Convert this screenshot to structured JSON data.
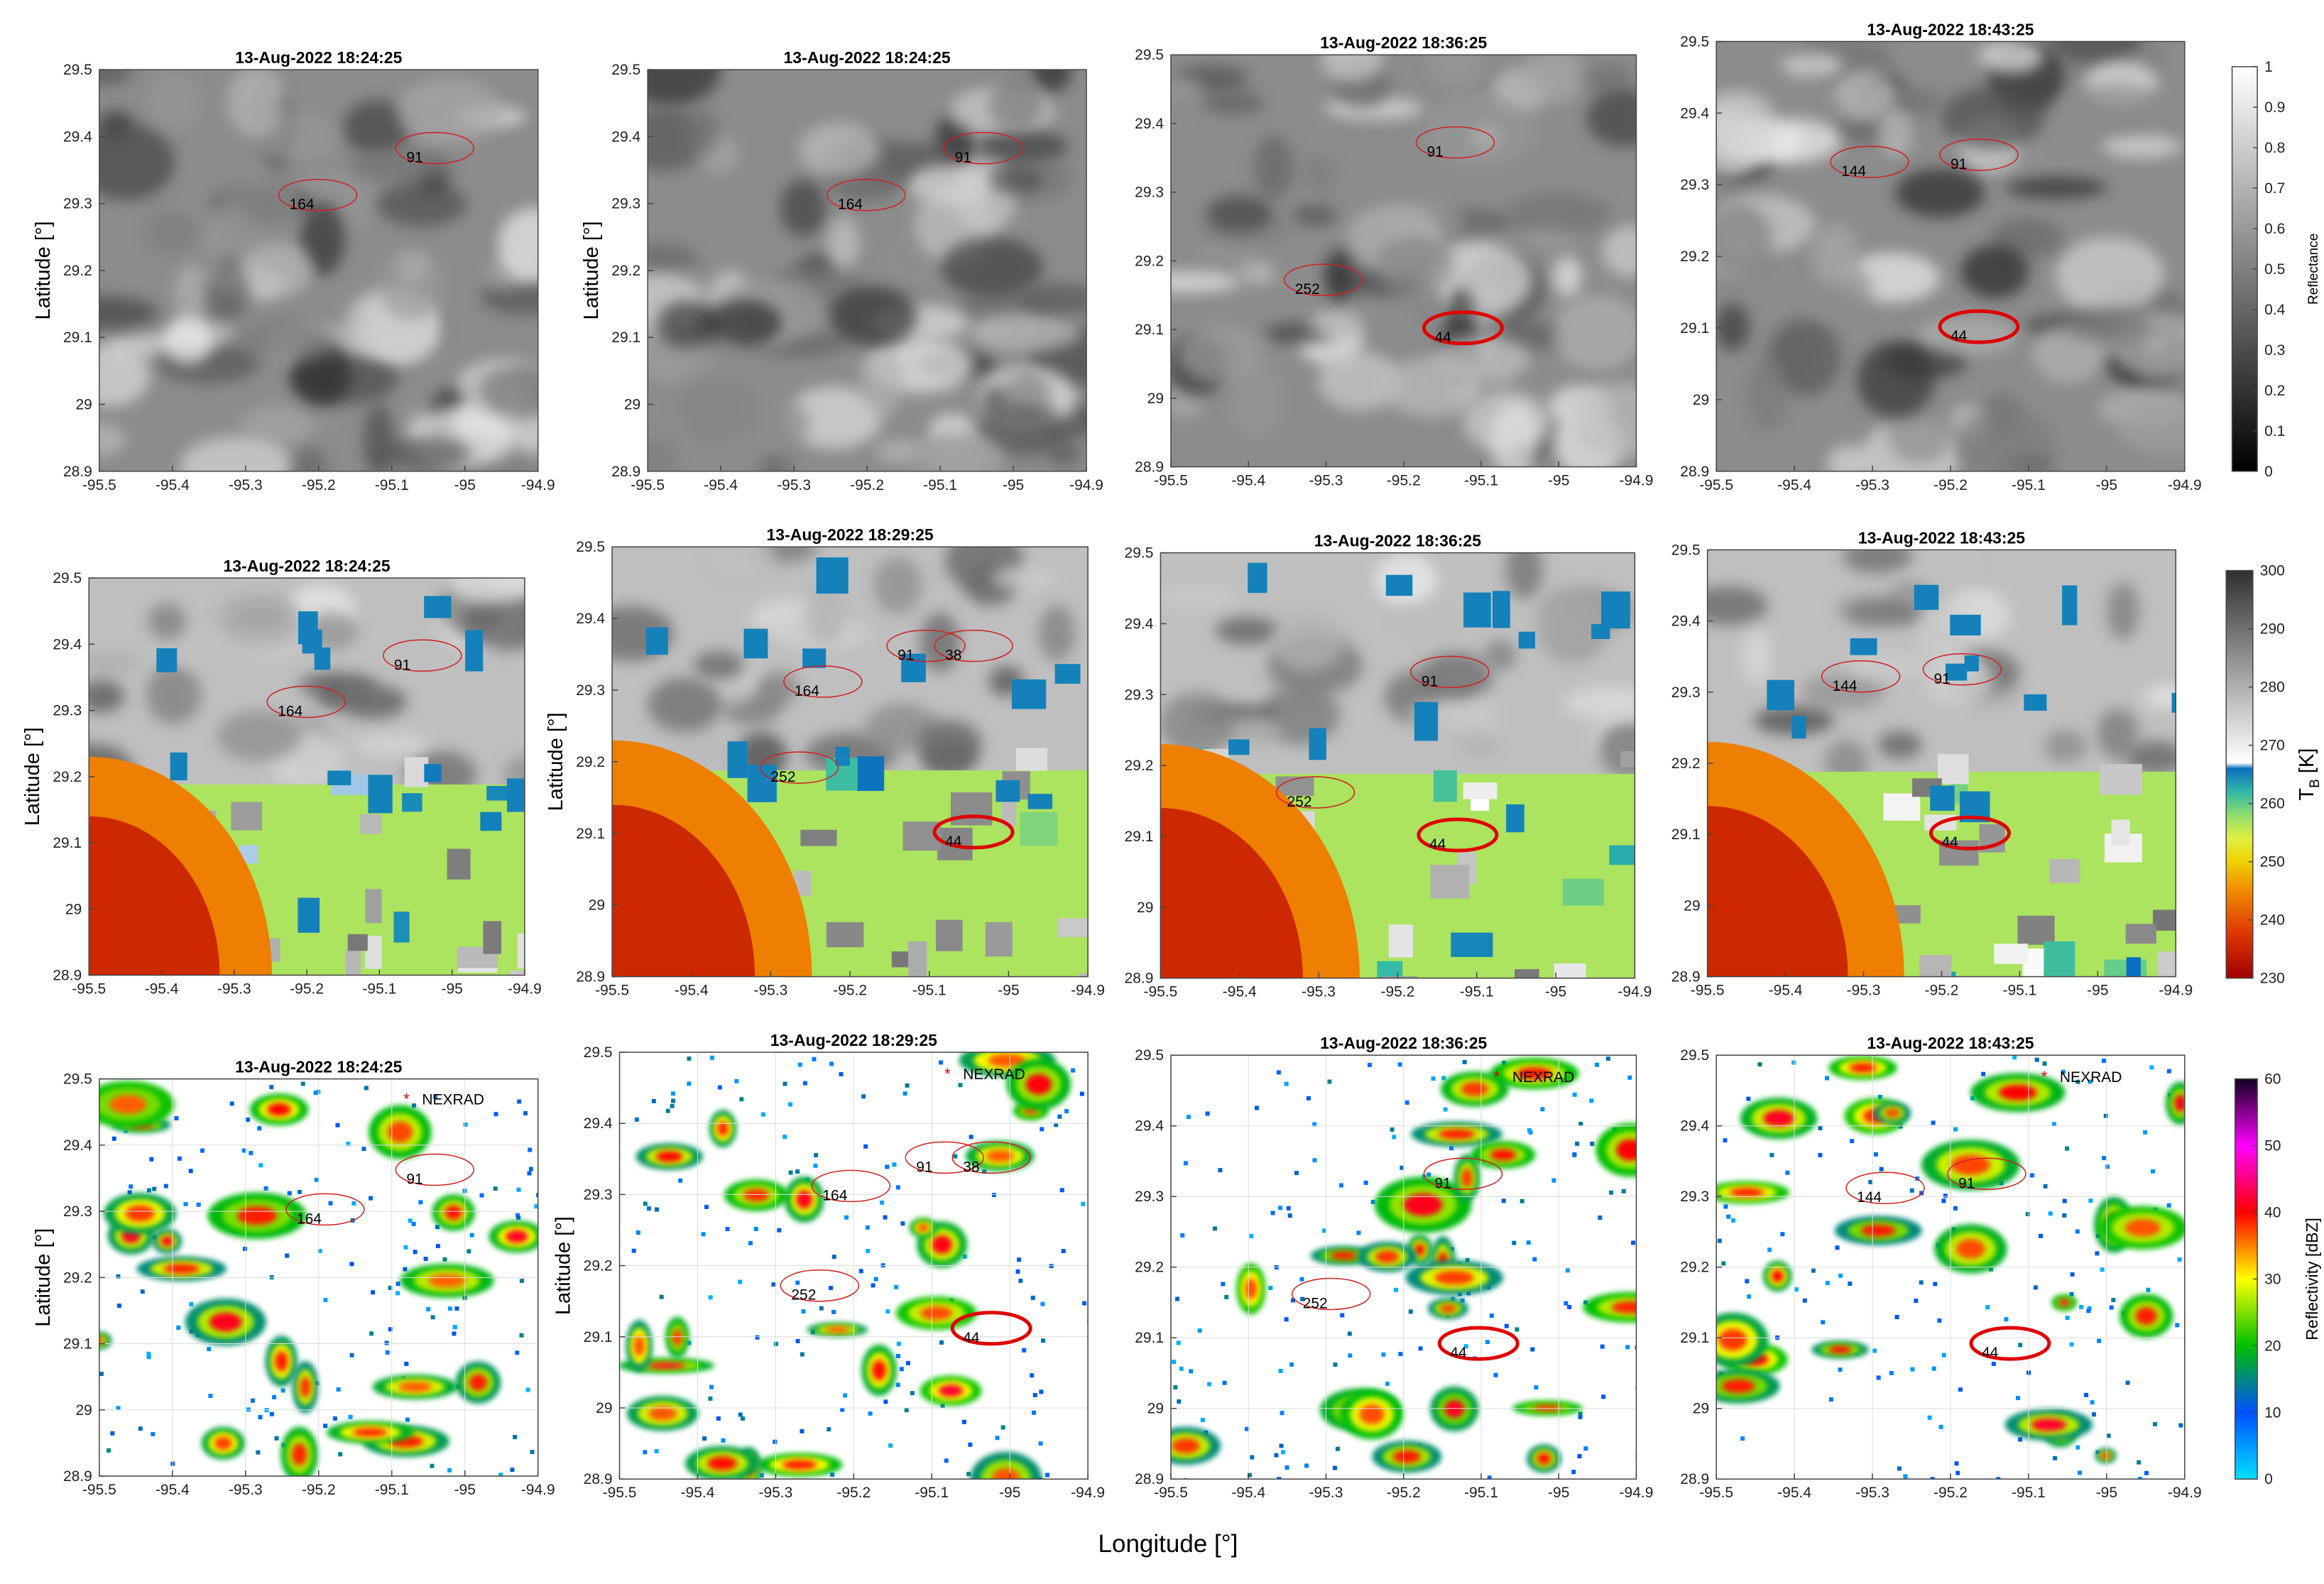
{
  "figure": {
    "xlabel": "Longitude [°]",
    "ylabel": "Latitude [°]",
    "xlim": [
      -95.5,
      -94.9
    ],
    "ylim": [
      28.9,
      29.5
    ],
    "xticks": [
      -95.5,
      -95.4,
      -95.3,
      -95.2,
      -95.1,
      -95,
      -94.9
    ],
    "yticks": [
      28.9,
      29,
      29.1,
      29.2,
      29.3,
      29.4,
      29.5
    ],
    "rows": [
      {
        "colorbar": {
          "label": "Reflectance",
          "lim": [
            0,
            1
          ],
          "ticks": [
            0,
            0.1,
            0.2,
            0.3,
            0.4,
            0.5,
            0.6,
            0.7,
            0.8,
            0.9,
            1
          ],
          "colormap": [
            [
              0,
              "#000000"
            ],
            [
              1,
              "#ffffff"
            ]
          ]
        },
        "grid": false,
        "panels": [
          {
            "title": "13-Aug-2022 18:24:25",
            "cells": [
              {
                "id": "91",
                "lon": -95.08,
                "lat": 29.37
              },
              {
                "id": "164",
                "lon": -95.24,
                "lat": 29.3
              }
            ]
          },
          {
            "title": "13-Aug-2022 18:24:25",
            "cells": [
              {
                "id": "91",
                "lon": -95.08,
                "lat": 29.37
              },
              {
                "id": "164",
                "lon": -95.24,
                "lat": 29.3
              }
            ]
          },
          {
            "title": "13-Aug-2022 18:36:25",
            "cells": [
              {
                "id": "91",
                "lon": -95.17,
                "lat": 29.36
              },
              {
                "id": "252",
                "lon": -95.34,
                "lat": 29.16
              },
              {
                "id": "44",
                "lon": -95.16,
                "lat": 29.09,
                "highlight": true
              }
            ]
          },
          {
            "title": "13-Aug-2022 18:43:25",
            "cells": [
              {
                "id": "144",
                "lon": -95.34,
                "lat": 29.32
              },
              {
                "id": "91",
                "lon": -95.2,
                "lat": 29.33
              },
              {
                "id": "44",
                "lon": -95.2,
                "lat": 29.09,
                "highlight": true
              }
            ]
          }
        ]
      },
      {
        "colorbar": {
          "label": {
            "main": "T",
            "sub": "B",
            "unit": "[K]"
          },
          "lim": [
            230,
            300
          ],
          "ticks": [
            230,
            240,
            250,
            260,
            270,
            280,
            290,
            300
          ],
          "colormap": [
            [
              230,
              "#a00000"
            ],
            [
              238,
              "#e03a00"
            ],
            [
              245,
              "#f08a00"
            ],
            [
              250,
              "#f0d000"
            ],
            [
              254,
              "#e0f040"
            ],
            [
              258,
              "#90dc70"
            ],
            [
              262,
              "#30b8a8"
            ],
            [
              266,
              "#0a6ec0"
            ],
            [
              267,
              "#ffffff"
            ],
            [
              280,
              "#b0b0b0"
            ],
            [
              300,
              "#303030"
            ]
          ]
        },
        "grid": false,
        "panels": [
          {
            "title": "13-Aug-2022 18:24:25",
            "cells": [
              {
                "id": "91",
                "lon": -95.08,
                "lat": 29.37
              },
              {
                "id": "164",
                "lon": -95.24,
                "lat": 29.3
              }
            ]
          },
          {
            "title": "13-Aug-2022 18:29:25",
            "cells": [
              {
                "id": "91",
                "lon": -95.14,
                "lat": 29.35
              },
              {
                "id": "38",
                "lon": -95.08,
                "lat": 29.35
              },
              {
                "id": "164",
                "lon": -95.27,
                "lat": 29.3
              },
              {
                "id": "252",
                "lon": -95.3,
                "lat": 29.18
              },
              {
                "id": "44",
                "lon": -95.08,
                "lat": 29.09,
                "highlight": true
              }
            ]
          },
          {
            "title": "13-Aug-2022 18:36:25",
            "cells": [
              {
                "id": "91",
                "lon": -95.17,
                "lat": 29.32
              },
              {
                "id": "252",
                "lon": -95.34,
                "lat": 29.15
              },
              {
                "id": "44",
                "lon": -95.16,
                "lat": 29.09,
                "highlight": true
              }
            ]
          },
          {
            "title": "13-Aug-2022 18:43:25",
            "cells": [
              {
                "id": "144",
                "lon": -95.34,
                "lat": 29.31
              },
              {
                "id": "91",
                "lon": -95.21,
                "lat": 29.32
              },
              {
                "id": "44",
                "lon": -95.2,
                "lat": 29.09,
                "highlight": true
              }
            ]
          }
        ]
      },
      {
        "colorbar": {
          "label": "Reflectivity [dBZ]",
          "lim": [
            0,
            60
          ],
          "ticks": [
            0,
            10,
            20,
            30,
            40,
            50,
            60
          ],
          "colormap": [
            [
              0,
              "#00e0ff"
            ],
            [
              10,
              "#0050ff"
            ],
            [
              20,
              "#00c000"
            ],
            [
              30,
              "#ffff00"
            ],
            [
              40,
              "#ff0000"
            ],
            [
              50,
              "#ff00ff"
            ],
            [
              60,
              "#100020"
            ]
          ]
        },
        "grid": true,
        "panels": [
          {
            "title": "13-Aug-2022 18:24:25",
            "radar": {
              "name": "NEXRAD",
              "lon": -95.08,
              "lat": 29.47
            },
            "cells": [
              {
                "id": "91",
                "lon": -95.08,
                "lat": 29.35
              },
              {
                "id": "164",
                "lon": -95.23,
                "lat": 29.29
              }
            ]
          },
          {
            "title": "13-Aug-2022 18:29:25",
            "radar": {
              "name": "NEXRAD",
              "lon": -95.08,
              "lat": 29.47
            },
            "cells": [
              {
                "id": "91",
                "lon": -95.12,
                "lat": 29.34
              },
              {
                "id": "38",
                "lon": -95.06,
                "lat": 29.34
              },
              {
                "id": "164",
                "lon": -95.24,
                "lat": 29.3
              },
              {
                "id": "252",
                "lon": -95.28,
                "lat": 29.16
              },
              {
                "id": "44",
                "lon": -95.06,
                "lat": 29.1,
                "highlight": true
              }
            ]
          },
          {
            "title": "13-Aug-2022 18:36:25",
            "radar": {
              "name": "NEXRAD",
              "lon": -95.08,
              "lat": 29.47
            },
            "cells": [
              {
                "id": "91",
                "lon": -95.16,
                "lat": 29.32
              },
              {
                "id": "252",
                "lon": -95.33,
                "lat": 29.15
              },
              {
                "id": "44",
                "lon": -95.14,
                "lat": 29.08,
                "highlight": true
              }
            ]
          },
          {
            "title": "13-Aug-2022 18:43:25",
            "radar": {
              "name": "NEXRAD",
              "lon": -95.08,
              "lat": 29.47
            },
            "cells": [
              {
                "id": "144",
                "lon": -95.32,
                "lat": 29.3
              },
              {
                "id": "91",
                "lon": -95.19,
                "lat": 29.32
              },
              {
                "id": "44",
                "lon": -95.16,
                "lat": 29.08,
                "highlight": true
              }
            ]
          }
        ]
      }
    ]
  }
}
